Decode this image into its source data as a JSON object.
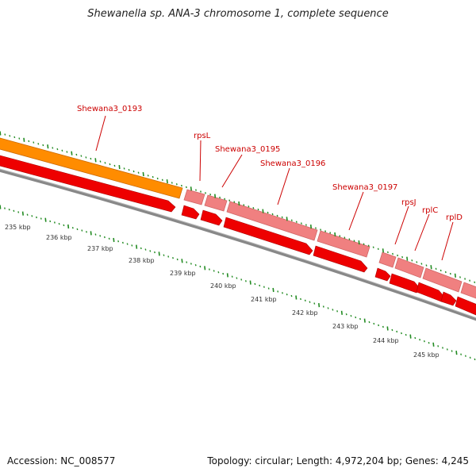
{
  "header": {
    "title": "Shewanella sp. ANA-3 chromosome 1, complete sequence"
  },
  "footer": {
    "accession": "Accession: NC_008577",
    "summary": "Topology: circular; Length: 4,972,204 bp; Genes: 4,245"
  },
  "gene_labels": [
    {
      "name": "gene-label-shewana3-0193",
      "text": "Shewana3_0193"
    },
    {
      "name": "gene-label-rpsl",
      "text": "rpsL"
    },
    {
      "name": "gene-label-shewana3-0195",
      "text": "Shewana3_0195"
    },
    {
      "name": "gene-label-shewana3-0196",
      "text": "Shewana3_0196"
    },
    {
      "name": "gene-label-shewana3-0197",
      "text": "Shewana3_0197"
    },
    {
      "name": "gene-label-rpsj",
      "text": "rpsJ"
    },
    {
      "name": "gene-label-rplc",
      "text": "rplC"
    },
    {
      "name": "gene-label-rpld",
      "text": "rplD"
    }
  ],
  "tick_labels": [
    "235 kbp",
    "236 kbp",
    "237 kbp",
    "238 kbp",
    "239 kbp",
    "240 kbp",
    "241 kbp",
    "242 kbp",
    "243 kbp",
    "244 kbp",
    "245 kbp"
  ],
  "colors": {
    "cds_orange": "#ff8c00",
    "cds_pink": "#f08080",
    "cds_red": "#ee0000",
    "backbone": "#888888",
    "ticks": "#228b22",
    "label": "#cc0000"
  }
}
